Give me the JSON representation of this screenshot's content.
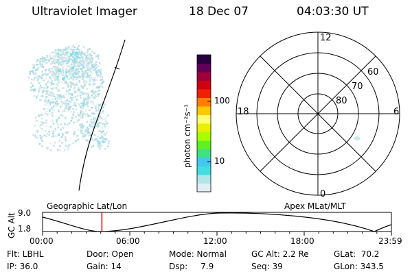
{
  "header": {
    "instrument": "Ultraviolet Imager",
    "date": "18 Dec 07",
    "time": "04:03:30 UT"
  },
  "colorbar": {
    "label": "photon cm⁻²s⁻¹",
    "ticks": [
      {
        "label": "100",
        "value": 100
      },
      {
        "label": "10",
        "value": 10
      }
    ],
    "colors": [
      "#e0eef2",
      "#b0e5ec",
      "#44dde0",
      "#44c8f0",
      "#3fe08a",
      "#60f020",
      "#a8ff00",
      "#e8f000",
      "#ffff70",
      "#ffc800",
      "#ff8000",
      "#f02000",
      "#d00010",
      "#a0003a",
      "#60005a",
      "#280040"
    ]
  },
  "polar_plot": {
    "latitude_labels": [
      "60",
      "70",
      "80"
    ],
    "mlt_labels": {
      "top": "12",
      "left": "18",
      "right": "6",
      "bottom": "0"
    }
  },
  "timeline": {
    "left_label": "Geographic Lat/Lon",
    "right_label": "Apex MLat/MLT",
    "y_axis_label": "GC Alt",
    "y_ticks": [
      "9.0",
      "1.8"
    ],
    "x_ticks": [
      "00:00",
      "06:00",
      "12:00",
      "18:00",
      "23:59"
    ],
    "current_time_fraction": 0.17,
    "marker_color": "#e00000"
  },
  "status": {
    "flt": "Flt: LBHL",
    "ip": "IP: 36.0",
    "door": "Door: Open",
    "gain": "Gain: 14",
    "mode": "Mode: Normal",
    "dsp": "Dsp:     7.9",
    "gc_alt": "GC Alt: 2.2 Re",
    "seq": "Seq: 39",
    "glat": "GLat:  70.2",
    "glon": "GLon: 343.5"
  }
}
